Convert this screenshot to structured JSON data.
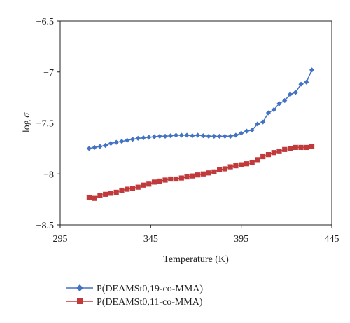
{
  "chart_data": {
    "type": "line",
    "xlabel": "Temperature (K)",
    "ylabel_prefix": "log ",
    "ylabel_symbol": "σ",
    "xlim": [
      295,
      445
    ],
    "ylim": [
      -8.5,
      -6.5
    ],
    "xticks": [
      295,
      345,
      395,
      445
    ],
    "yticks": [
      -6.5,
      -7,
      -7.5,
      -8,
      -8.5
    ],
    "xtick_labels": [
      "295",
      "345",
      "395",
      "445"
    ],
    "ytick_labels": [
      "−6.5",
      "−7",
      "−7.5",
      "−8",
      "−8.5"
    ],
    "grid": false,
    "legend_position": "bottom-left",
    "series": [
      {
        "name": "P(DEAMSt0,19-co-MMA)",
        "color": "#4472c4",
        "marker": "diamond",
        "x": [
          311,
          314,
          317,
          320,
          323,
          326,
          329,
          332,
          335,
          338,
          341,
          344,
          347,
          350,
          353,
          356,
          359,
          362,
          365,
          368,
          371,
          374,
          377,
          380,
          383,
          386,
          389,
          392,
          395,
          398,
          401,
          404,
          407,
          410,
          413,
          416,
          419,
          422,
          425,
          428,
          431,
          434
        ],
        "y": [
          -7.75,
          -7.74,
          -7.73,
          -7.72,
          -7.7,
          -7.69,
          -7.68,
          -7.67,
          -7.66,
          -7.65,
          -7.645,
          -7.64,
          -7.635,
          -7.63,
          -7.63,
          -7.625,
          -7.62,
          -7.62,
          -7.62,
          -7.625,
          -7.62,
          -7.625,
          -7.63,
          -7.63,
          -7.63,
          -7.63,
          -7.63,
          -7.62,
          -7.6,
          -7.58,
          -7.57,
          -7.51,
          -7.49,
          -7.4,
          -7.37,
          -7.31,
          -7.28,
          -7.22,
          -7.2,
          -7.12,
          -7.1,
          -6.98
        ]
      },
      {
        "name": "P(DEAMSt0,11-co-MMA)",
        "color": "#c0393b",
        "marker": "square",
        "x": [
          311,
          314,
          317,
          320,
          323,
          326,
          329,
          332,
          335,
          338,
          341,
          344,
          347,
          350,
          353,
          356,
          359,
          362,
          365,
          368,
          371,
          374,
          377,
          380,
          383,
          386,
          389,
          392,
          395,
          398,
          401,
          404,
          407,
          410,
          413,
          416,
          419,
          422,
          425,
          428,
          431,
          434
        ],
        "y": [
          -8.23,
          -8.24,
          -8.21,
          -8.2,
          -8.19,
          -8.18,
          -8.16,
          -8.15,
          -8.14,
          -8.13,
          -8.11,
          -8.1,
          -8.08,
          -8.07,
          -8.06,
          -8.05,
          -8.05,
          -8.04,
          -8.03,
          -8.02,
          -8.01,
          -8.0,
          -7.99,
          -7.98,
          -7.96,
          -7.95,
          -7.93,
          -7.92,
          -7.91,
          -7.9,
          -7.89,
          -7.86,
          -7.83,
          -7.81,
          -7.79,
          -7.78,
          -7.76,
          -7.75,
          -7.74,
          -7.74,
          -7.74,
          -7.73
        ]
      }
    ]
  }
}
